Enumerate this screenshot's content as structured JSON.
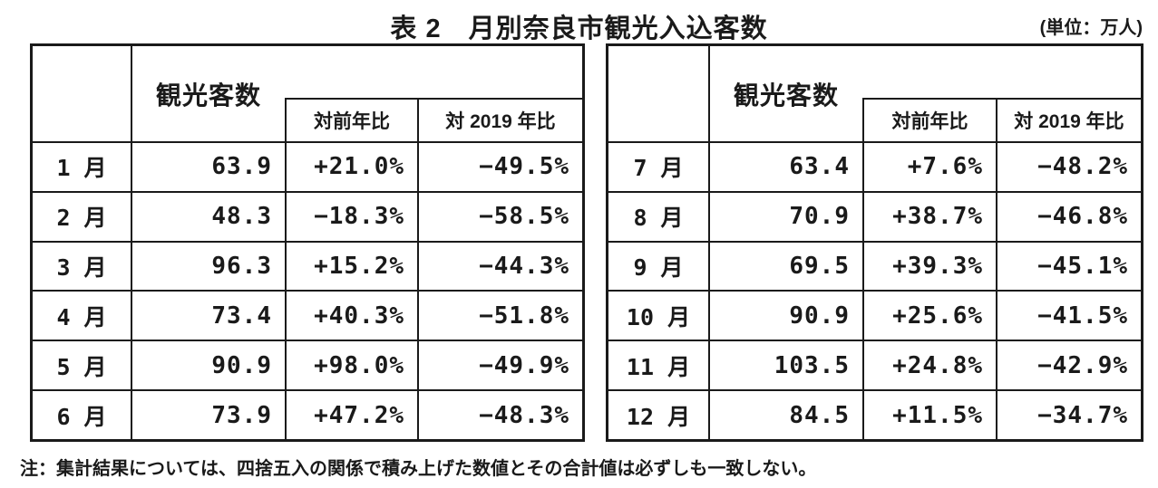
{
  "title": "表 2　月別奈良市観光入込客数",
  "unit_label": "(単位：万人)",
  "note": "注：集計結果については、四捨五入の関係で積み上げた数値とその合計値は必ずしも一致しない。",
  "header": {
    "visitors": "観光客数",
    "yoy": "対前年比",
    "vs2019": "対 2019 年比"
  },
  "tables": [
    {
      "rows": [
        {
          "month": "1 月",
          "visitors": "63.9",
          "yoy": "+21.0%",
          "vs2019": "−49.5%"
        },
        {
          "month": "2 月",
          "visitors": "48.3",
          "yoy": "−18.3%",
          "vs2019": "−58.5%"
        },
        {
          "month": "3 月",
          "visitors": "96.3",
          "yoy": "+15.2%",
          "vs2019": "−44.3%"
        },
        {
          "month": "4 月",
          "visitors": "73.4",
          "yoy": "+40.3%",
          "vs2019": "−51.8%"
        },
        {
          "month": "5 月",
          "visitors": "90.9",
          "yoy": "+98.0%",
          "vs2019": "−49.9%"
        },
        {
          "month": "6 月",
          "visitors": "73.9",
          "yoy": "+47.2%",
          "vs2019": "−48.3%"
        }
      ]
    },
    {
      "rows": [
        {
          "month": "7 月",
          "visitors": "63.4",
          "yoy": "+7.6%",
          "vs2019": "−48.2%"
        },
        {
          "month": "8 月",
          "visitors": "70.9",
          "yoy": "+38.7%",
          "vs2019": "−46.8%"
        },
        {
          "month": "9 月",
          "visitors": "69.5",
          "yoy": "+39.3%",
          "vs2019": "−45.1%"
        },
        {
          "month": "10 月",
          "visitors": "90.9",
          "yoy": "+25.6%",
          "vs2019": "−41.5%"
        },
        {
          "month": "11 月",
          "visitors": "103.5",
          "yoy": "+24.8%",
          "vs2019": "−42.9%"
        },
        {
          "month": "12 月",
          "visitors": "84.5",
          "yoy": "+11.5%",
          "vs2019": "−34.7%"
        }
      ]
    }
  ]
}
